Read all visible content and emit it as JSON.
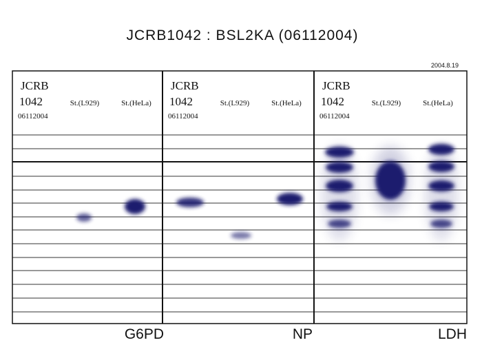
{
  "title": "JCRB1042 : BSL2KA (06112004)",
  "date": "2004.8.19",
  "panels": [
    {
      "sample": [
        "JCRB",
        "1042",
        "06112004"
      ],
      "lanes": [
        "St.(L929)",
        "St.(HeLa)"
      ],
      "enzyme": "G6PD"
    },
    {
      "sample": [
        "JCRB",
        "1042",
        "06112004"
      ],
      "lanes": [
        "St.(L929)",
        "St.(HeLa)"
      ],
      "enzyme": "NP"
    },
    {
      "sample": [
        "JCRB",
        "1042",
        "06112004"
      ],
      "lanes": [
        "St.(L929)",
        "St.(HeLa)"
      ],
      "enzyme": "LDH"
    }
  ]
}
